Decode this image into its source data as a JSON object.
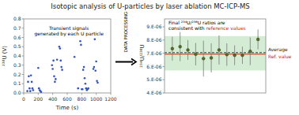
{
  "chart_data": [
    {
      "type": "scatter",
      "title": "Isotopic analysis of U-particles by laser ablation MC-ICP-MS",
      "x": [
        50,
        60,
        70,
        80,
        90,
        100,
        110,
        120,
        130,
        200,
        210,
        220,
        230,
        240,
        390,
        400,
        410,
        420,
        430,
        440,
        460,
        490,
        500,
        510,
        520,
        530,
        700,
        750,
        780,
        790,
        800,
        810,
        820,
        830,
        840,
        850,
        860,
        870,
        880,
        890,
        960,
        970,
        980,
        990,
        1000,
        1010,
        1020
      ],
      "values": [
        0.02,
        0.12,
        0.18,
        0.05,
        0.02,
        0.19,
        0.12,
        0.05,
        0.03,
        0.27,
        0.05,
        0.03,
        0.02,
        0.01,
        0.3,
        0.26,
        0.35,
        0.18,
        0.12,
        0.15,
        0.36,
        0.5,
        0.48,
        0.35,
        0.28,
        0.25,
        0.39,
        0.05,
        0.56,
        0.52,
        0.04,
        0.04,
        0.25,
        0.28,
        0.16,
        0.1,
        0.05,
        0.03,
        0.04,
        0.05,
        0.26,
        0.28,
        0.58,
        0.24,
        0.34,
        0.13,
        0.11
      ],
      "color": "#3355bb",
      "xlabel": "Time (s)",
      "ylabel": "²³⁸U (V)",
      "xlim": [
        0,
        1200
      ],
      "ylim": [
        0,
        0.8
      ],
      "xticks": [
        0,
        200,
        400,
        600,
        800,
        1000,
        1200
      ],
      "yticks": [
        {
          "value": 0.0,
          "label": "0.0"
        },
        0.1,
        0.2,
        0.3,
        0.4,
        0.5,
        0.6,
        0.7,
        0.8
      ],
      "annotations": [
        "Transient signals\ngenerated by each U particle",
        "DATA PROCESSING"
      ]
    },
    {
      "type": "scatter",
      "x": [
        1,
        2,
        3,
        4,
        5,
        6,
        7,
        8,
        9,
        10,
        11,
        12
      ],
      "series": [
        {
          "values": [
            7.35e-06,
            7.5e-06,
            7.25e-06,
            6.93e-06,
            6.6e-06,
            6.65e-06,
            7.25e-06,
            6.9e-06,
            6.85e-06,
            6.85e-06,
            7.15e-06,
            8.05e-06
          ],
          "errors": [
            9e-07,
            1.1e-06,
            7.5e-07,
            8.5e-07,
            1.35e-06,
            1.1e-06,
            1.1e-06,
            8.5e-07,
            7.5e-07,
            6.5e-07,
            1.05e-06,
            7.5e-07
          ],
          "color": "#556b2f"
        }
      ],
      "reference_lines": [
        {
          "name": "Average",
          "value": 7.05e-06,
          "color": "#222222",
          "line_style": "dashed"
        },
        {
          "name": "Ref. value",
          "value": 6.93e-06,
          "color": "#cc2200",
          "line_style": "solid"
        }
      ],
      "band": {
        "low": 5.7e-06,
        "high": 8.3e-06,
        "color": "#d4ecd4"
      },
      "ylabel": "²³⁴U/²³⁸U",
      "xlim": [
        0,
        13
      ],
      "xticks": [],
      "ylim": [
        4e-06,
        9.6e-06
      ],
      "yticks": [
        {
          "value": 4e-06,
          "label": "4.E-06"
        },
        {
          "value": 5e-06,
          "label": "5.E-06"
        },
        {
          "value": 6e-06,
          "label": "6.E-06"
        },
        {
          "value": 7e-06,
          "label": "7.E-06"
        },
        {
          "value": 8e-06,
          "label": "8.E-06"
        },
        {
          "value": 9e-06,
          "label": "9.E-06"
        }
      ],
      "tick_labels": "y",
      "annotations": [
        "Final ²³⁴U/²³⁸U ratios are",
        "consistent with",
        "reference values"
      ]
    }
  ]
}
